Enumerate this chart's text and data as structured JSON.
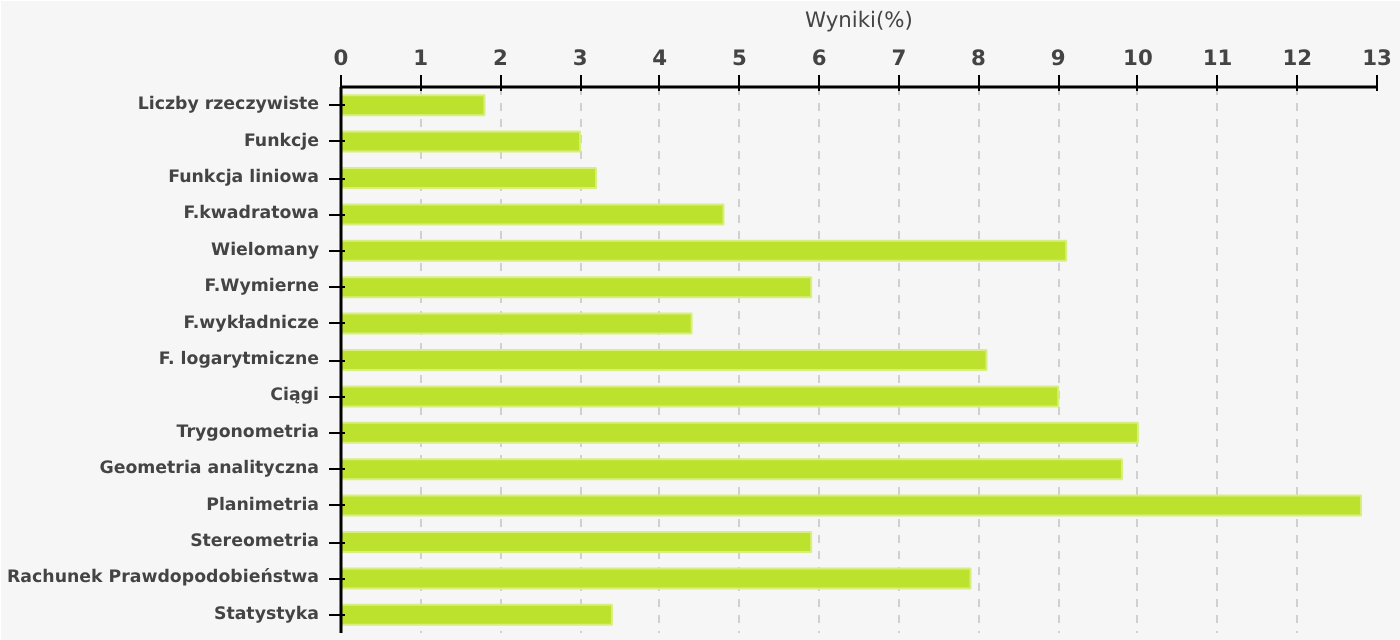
{
  "chart_data": {
    "type": "bar",
    "orientation": "horizontal",
    "xlabel": "Wyniki(%)",
    "categories": [
      "Liczby rzeczywiste",
      "Funkcje",
      "Funkcja liniowa",
      "F.kwadratowa",
      "Wielomany",
      "F.Wymierne",
      "F.wykładnicze",
      "F. logarytmiczne",
      "Ciągi",
      "Trygonometria",
      "Geometria analityczna",
      "Planimetria",
      "Stereometria",
      "Rachunek Prawdopodobieństwa",
      "Statystyka"
    ],
    "values": [
      1.8,
      3.0,
      3.2,
      4.8,
      9.1,
      5.9,
      4.4,
      8.1,
      9.0,
      10.0,
      9.8,
      12.8,
      5.9,
      7.9,
      3.4
    ],
    "color": "#bde22e",
    "xlim": [
      0,
      13
    ],
    "xticks": [
      0,
      1,
      2,
      3,
      4,
      5,
      6,
      7,
      8,
      9,
      10,
      11,
      12,
      13
    ],
    "grid": "x"
  }
}
